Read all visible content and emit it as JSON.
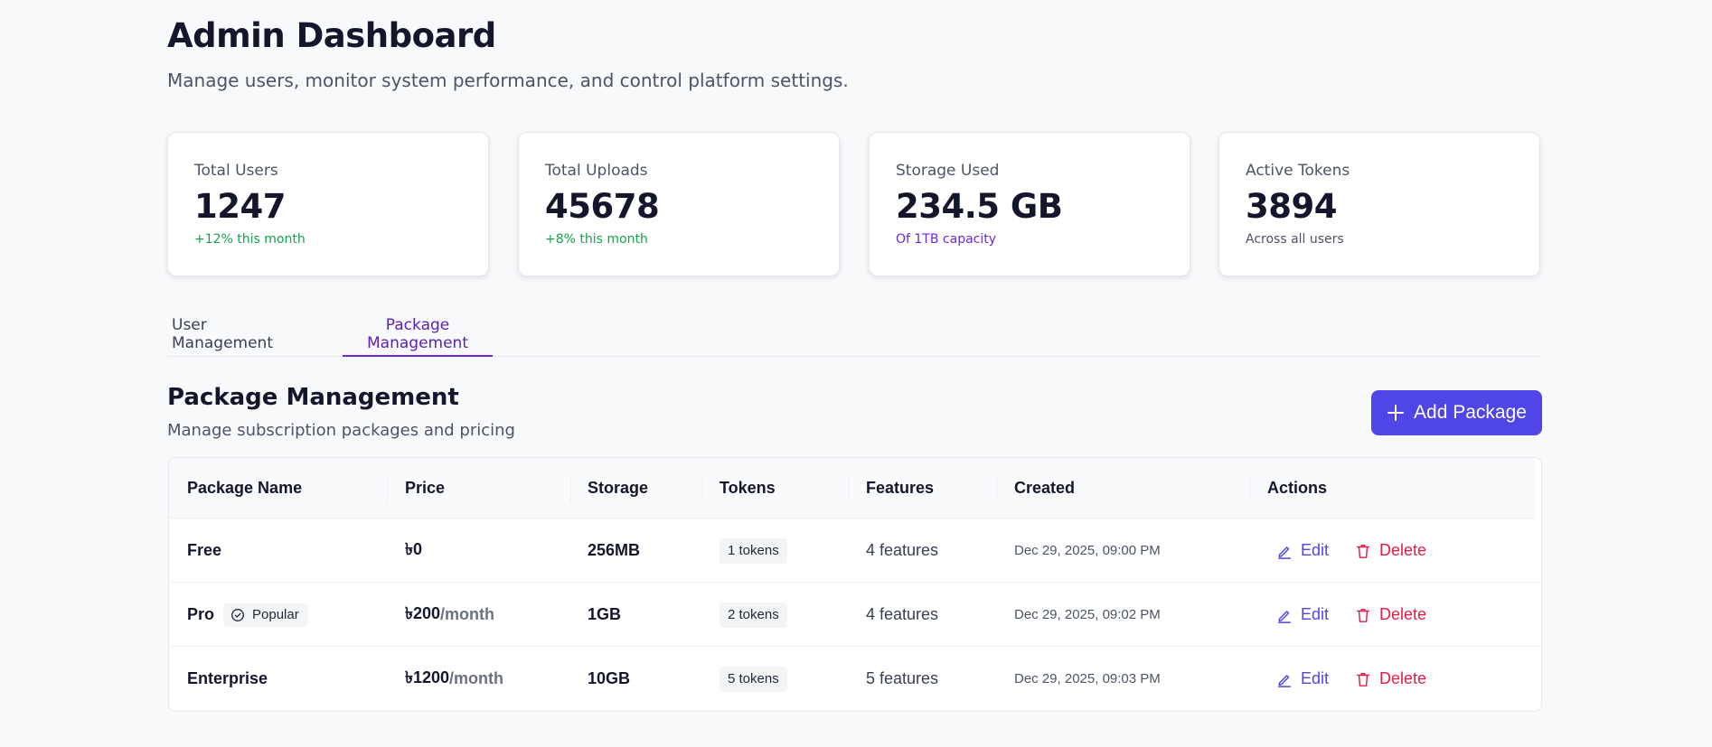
{
  "header": {
    "title": "Admin Dashboard",
    "subtitle": "Manage users, monitor system performance, and control platform settings."
  },
  "stats": [
    {
      "label": "Total Users",
      "value": "1247",
      "note": "+12% this month",
      "note_color": "#16a34a"
    },
    {
      "label": "Total Uploads",
      "value": "45678",
      "note": "+8% this month",
      "note_color": "#16a34a"
    },
    {
      "label": "Storage Used",
      "value": "234.5 GB",
      "note": "Of 1TB capacity",
      "note_color": "#6d28d9"
    },
    {
      "label": "Active Tokens",
      "value": "3894",
      "note": "Across all users",
      "note_color": "#4b5563"
    }
  ],
  "tabs": [
    {
      "label": "User Management",
      "active": false
    },
    {
      "label": "Package Management",
      "active": true
    }
  ],
  "section": {
    "title": "Package Management",
    "subtitle": "Manage subscription packages and pricing",
    "add_button_label": "Add Package",
    "add_icon": "plus-icon"
  },
  "table": {
    "columns": [
      "Package Name",
      "Price",
      "Storage",
      "Tokens",
      "Features",
      "Created",
      "Actions"
    ],
    "rows": [
      {
        "name": "Free",
        "badge": "",
        "price": "৳0",
        "per": "",
        "storage": "256MB",
        "tokens": "1 tokens",
        "features": "4 features",
        "created": "Dec 29, 2025, 09:00 PM"
      },
      {
        "name": "Pro",
        "badge": "Popular",
        "price": "৳200",
        "per": "/month",
        "storage": "1GB",
        "tokens": "2 tokens",
        "features": "4 features",
        "created": "Dec 29, 2025, 09:02 PM"
      },
      {
        "name": "Enterprise",
        "badge": "",
        "price": "৳1200",
        "per": "/month",
        "storage": "10GB",
        "tokens": "5 tokens",
        "features": "5 features",
        "created": "Dec 29, 2025, 09:03 PM"
      }
    ],
    "actions": {
      "edit_label": "Edit",
      "edit_icon": "pencil-icon",
      "delete_label": "Delete",
      "delete_icon": "trash-icon"
    }
  },
  "colors": {
    "accent": "#4f46e5",
    "tab_active": "#6d28d9",
    "delete": "#e11d48",
    "positive": "#16a34a"
  }
}
